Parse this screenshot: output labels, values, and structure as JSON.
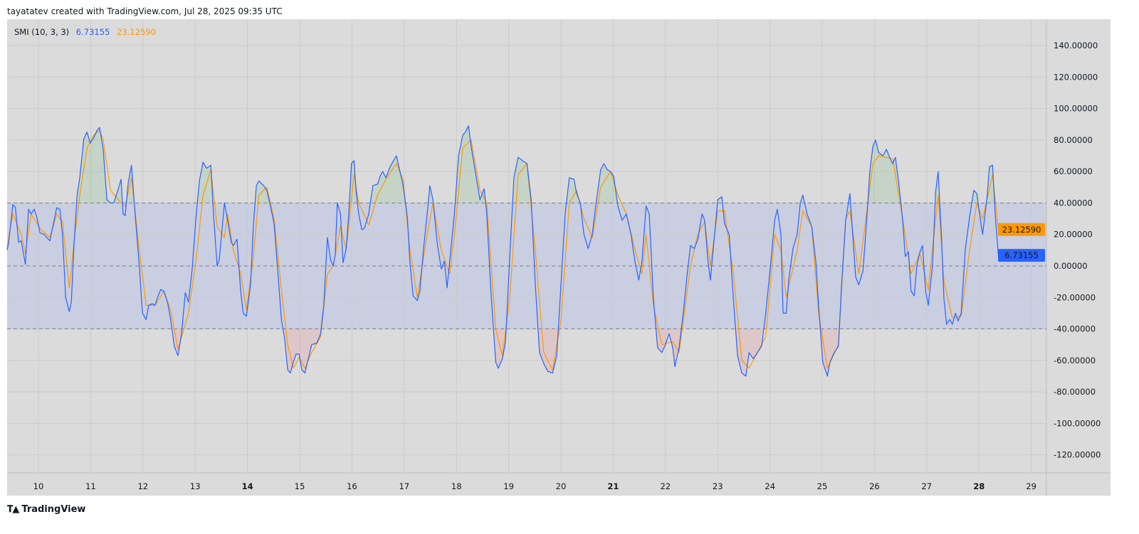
{
  "header": {
    "attribution": "tayatatev created with TradingView.com, Jul 28, 2025 09:35 UTC"
  },
  "legend": {
    "indicator": "SMI (10, 3, 3)",
    "smi_value": "6.73155",
    "signal_value": "23.12590"
  },
  "footer": {
    "brand": "TradingView",
    "logo_icon": "tradingview-logo-icon"
  },
  "colors": {
    "smi": "#2962ff",
    "signal": "#ff9800",
    "band": "#c9cee0",
    "background": "#dbdbdb",
    "overbought_fill": "#4caf50",
    "oversold_fill": "#f23645"
  },
  "chart_data": {
    "type": "line",
    "title": "SMI (10, 3, 3)",
    "ylim": [
      -130,
      150
    ],
    "xlim": [
      9.4,
      29.3
    ],
    "y_ticks": [
      140,
      120,
      100,
      80,
      60,
      40,
      20,
      0,
      -20,
      -40,
      -60,
      -80,
      -100,
      -120
    ],
    "y_tick_labels": [
      "140.00000",
      "120.00000",
      "100.00000",
      "80.00000",
      "60.00000",
      "40.00000",
      "20.00000",
      "0.00000",
      "-20.00000",
      "-40.00000",
      "-60.00000",
      "-80.00000",
      "-100.00000",
      "-120.00000"
    ],
    "x_ticks": [
      10,
      11,
      12,
      13,
      14,
      15,
      16,
      17,
      18,
      19,
      20,
      21,
      22,
      23,
      24,
      25,
      26,
      27,
      28,
      29
    ],
    "x_tick_labels": [
      "10",
      "11",
      "12",
      "13",
      "14",
      "15",
      "16",
      "17",
      "18",
      "19",
      "20",
      "21",
      "22",
      "23",
      "24",
      "25",
      "26",
      "27",
      "28",
      "29"
    ],
    "x_bold_ticks": [
      "14",
      "21",
      "28"
    ],
    "bands": {
      "upper": 40,
      "middle": 0,
      "lower": -40
    },
    "grid": true,
    "last_labels": {
      "signal": "23.12590",
      "smi": "6.73155"
    },
    "series": [
      {
        "name": "SMI",
        "color": "#2962ff",
        "x": [
          9.4,
          9.43,
          9.51,
          9.56,
          9.62,
          9.67,
          9.75,
          9.81,
          9.86,
          9.92,
          9.97,
          10.03,
          10.11,
          10.16,
          10.22,
          10.3,
          10.35,
          10.41,
          10.46,
          10.52,
          10.59,
          10.63,
          10.68,
          10.74,
          10.79,
          10.87,
          10.93,
          10.99,
          11.05,
          11.12,
          11.17,
          11.24,
          11.31,
          11.38,
          11.44,
          11.53,
          11.58,
          11.62,
          11.66,
          11.72,
          11.78,
          11.85,
          11.93,
          11.99,
          12.06,
          12.11,
          12.18,
          12.23,
          12.29,
          12.34,
          12.4,
          12.47,
          12.53,
          12.6,
          12.67,
          12.74,
          12.81,
          12.87,
          12.94,
          13.02,
          13.08,
          13.15,
          13.22,
          13.3,
          13.35,
          13.42,
          13.46,
          13.56,
          13.62,
          13.69,
          13.73,
          13.8,
          13.87,
          13.92,
          13.98,
          14.06,
          14.11,
          14.17,
          14.22,
          14.31,
          14.37,
          14.44,
          14.51,
          14.58,
          14.65,
          14.71,
          14.77,
          14.82,
          14.88,
          14.93,
          14.99,
          15.04,
          15.1,
          15.15,
          15.23,
          15.33,
          15.4,
          15.46,
          15.53,
          15.59,
          15.64,
          15.68,
          15.72,
          15.78,
          15.83,
          15.89,
          15.94,
          15.99,
          16.04,
          16.08,
          16.13,
          16.19,
          16.24,
          16.32,
          16.4,
          16.49,
          16.54,
          16.59,
          16.65,
          16.73,
          16.78,
          16.85,
          16.92,
          16.98,
          17.06,
          17.11,
          17.17,
          17.25,
          17.3,
          17.37,
          17.44,
          17.49,
          17.55,
          17.63,
          17.71,
          17.77,
          17.82,
          17.87,
          17.96,
          18.04,
          18.12,
          18.17,
          18.23,
          18.28,
          18.37,
          18.45,
          18.53,
          18.58,
          18.66,
          18.75,
          18.8,
          18.88,
          18.94,
          19.02,
          19.1,
          19.18,
          19.26,
          19.35,
          19.43,
          19.51,
          19.59,
          19.67,
          19.75,
          19.84,
          19.92,
          20.0,
          20.08,
          20.16,
          20.25,
          20.3,
          20.37,
          20.44,
          20.52,
          20.6,
          20.68,
          20.76,
          20.82,
          20.89,
          20.95,
          21.01,
          21.09,
          21.17,
          21.25,
          21.34,
          21.42,
          21.49,
          21.55,
          21.63,
          21.69,
          21.77,
          21.85,
          21.93,
          22.0,
          22.07,
          22.14,
          22.18,
          22.26,
          22.34,
          22.41,
          22.48,
          22.55,
          22.62,
          22.7,
          22.75,
          22.81,
          22.86,
          22.94,
          23.0,
          23.08,
          23.13,
          23.22,
          23.3,
          23.38,
          23.46,
          23.54,
          23.6,
          23.68,
          23.76,
          23.84,
          23.92,
          24.01,
          24.09,
          24.14,
          24.21,
          24.25,
          24.31,
          24.36,
          24.44,
          24.52,
          24.58,
          24.63,
          24.71,
          24.8,
          24.88,
          24.93,
          25.01,
          25.1,
          25.15,
          25.23,
          25.31,
          25.37,
          25.45,
          25.53,
          25.59,
          25.64,
          25.7,
          25.78,
          25.86,
          25.91,
          25.97,
          26.02,
          26.08,
          26.16,
          26.23,
          26.29,
          26.35,
          26.4,
          26.46,
          26.54,
          26.59,
          26.65,
          26.7,
          26.76,
          26.81,
          26.87,
          26.92,
          26.98,
          27.03,
          27.11,
          27.17,
          27.22,
          27.28,
          27.33,
          27.38,
          27.44,
          27.49,
          27.55,
          27.6,
          27.66,
          27.74,
          27.82,
          27.9,
          27.96,
          28.01,
          28.07,
          28.15,
          28.2,
          28.26,
          28.31,
          28.37
        ],
        "values": [
          10,
          15,
          39,
          37,
          15,
          16,
          1,
          36,
          33,
          36,
          31,
          21,
          20,
          18,
          16,
          29,
          37,
          36,
          20,
          -20,
          -29,
          -23,
          13,
          45,
          56,
          81,
          85,
          78,
          81,
          86,
          88,
          74,
          42,
          40,
          40,
          49,
          55,
          33,
          32,
          53,
          64,
          33,
          0,
          -30,
          -34,
          -25,
          -24,
          -25,
          -19,
          -15,
          -16,
          -23,
          -34,
          -51,
          -57,
          -43,
          -17,
          -23,
          -3,
          33,
          54,
          66,
          62,
          64,
          33,
          0,
          4,
          40,
          29,
          15,
          13,
          17,
          -16,
          -30,
          -32,
          -12,
          24,
          51,
          54,
          51,
          48,
          38,
          27,
          -3,
          -34,
          -46,
          -66,
          -68,
          -61,
          -56,
          -56,
          -66,
          -68,
          -61,
          -50,
          -49,
          -43,
          -25,
          18,
          4,
          0,
          7,
          40,
          33,
          2,
          11,
          33,
          65,
          67,
          47,
          33,
          23,
          24,
          33,
          51,
          52,
          57,
          60,
          56,
          63,
          66,
          70,
          60,
          51,
          31,
          2,
          -19,
          -22,
          -16,
          11,
          33,
          51,
          42,
          15,
          -2,
          3,
          -14,
          3,
          33,
          70,
          83,
          85,
          89,
          76,
          58,
          42,
          49,
          33,
          -16,
          -61,
          -65,
          -59,
          -48,
          6,
          56,
          69,
          67,
          65,
          42,
          -12,
          -55,
          -62,
          -67,
          -68,
          -57,
          -12,
          33,
          56,
          55,
          46,
          40,
          20,
          11,
          20,
          42,
          61,
          65,
          61,
          60,
          57,
          38,
          29,
          33,
          20,
          2,
          -9,
          3,
          38,
          33,
          -21,
          -52,
          -55,
          -50,
          -43,
          -52,
          -64,
          -52,
          -30,
          -7,
          13,
          11,
          17,
          33,
          29,
          4,
          -9,
          20,
          42,
          44,
          27,
          20,
          -21,
          -57,
          -68,
          -70,
          -55,
          -59,
          -55,
          -51,
          -30,
          0,
          29,
          36,
          20,
          -30,
          -30,
          -9,
          11,
          20,
          40,
          45,
          33,
          25,
          2,
          -25,
          -61,
          -70,
          -61,
          -55,
          -51,
          -12,
          29,
          46,
          17,
          -7,
          -12,
          -3,
          33,
          60,
          76,
          80,
          72,
          70,
          74,
          69,
          65,
          69,
          54,
          29,
          6,
          9,
          -16,
          -19,
          0,
          9,
          13,
          -16,
          -25,
          0,
          47,
          60,
          20,
          -21,
          -37,
          -34,
          -37,
          -30,
          -35,
          -30,
          11,
          31,
          48,
          46,
          33,
          20,
          42,
          63,
          64,
          33,
          6.73155
        ]
      },
      {
        "name": "Signal",
        "color": "#ff9800",
        "x": [
          9.4,
          9.51,
          9.67,
          9.75,
          9.86,
          10.03,
          10.22,
          10.35,
          10.46,
          10.59,
          10.68,
          10.79,
          10.93,
          11.05,
          11.17,
          11.24,
          11.38,
          11.53,
          11.66,
          11.78,
          11.93,
          12.06,
          12.23,
          12.4,
          12.53,
          12.67,
          12.87,
          13.02,
          13.15,
          13.3,
          13.42,
          13.56,
          13.62,
          13.73,
          13.87,
          13.98,
          14.11,
          14.22,
          14.37,
          14.51,
          14.65,
          14.77,
          14.88,
          14.99,
          15.1,
          15.23,
          15.4,
          15.53,
          15.64,
          15.78,
          15.89,
          16.04,
          16.13,
          16.32,
          16.49,
          16.65,
          16.85,
          16.98,
          17.11,
          17.25,
          17.44,
          17.55,
          17.71,
          17.87,
          17.96,
          18.12,
          18.28,
          18.45,
          18.58,
          18.75,
          18.88,
          19.02,
          19.18,
          19.35,
          19.51,
          19.67,
          19.84,
          20.0,
          20.16,
          20.3,
          20.44,
          20.6,
          20.76,
          20.95,
          21.09,
          21.25,
          21.42,
          21.55,
          21.63,
          21.77,
          21.93,
          22.14,
          22.26,
          22.48,
          22.62,
          22.75,
          22.86,
          23.0,
          23.13,
          23.3,
          23.46,
          23.6,
          23.76,
          23.92,
          24.09,
          24.21,
          24.31,
          24.52,
          24.63,
          24.8,
          24.93,
          25.1,
          25.31,
          25.45,
          25.53,
          25.7,
          25.97,
          26.08,
          26.35,
          26.54,
          26.7,
          26.87,
          27.03,
          27.22,
          27.33,
          27.49,
          27.66,
          27.82,
          27.96,
          28.07,
          28.26,
          28.37
        ],
        "values": [
          12,
          33,
          20,
          8,
          33,
          24,
          18,
          33,
          28,
          -14,
          15,
          45,
          75,
          83,
          86,
          80,
          48,
          42,
          38,
          56,
          10,
          -25,
          -25,
          -16,
          -28,
          -53,
          -30,
          5,
          45,
          61,
          25,
          18,
          33,
          10,
          -5,
          -28,
          5,
          45,
          50,
          30,
          -15,
          -50,
          -65,
          -58,
          -65,
          -55,
          -45,
          -5,
          0,
          25,
          10,
          58,
          40,
          26,
          45,
          55,
          65,
          55,
          10,
          -20,
          20,
          40,
          10,
          -5,
          20,
          75,
          80,
          48,
          40,
          -40,
          -57,
          -20,
          58,
          65,
          10,
          -55,
          -66,
          -35,
          40,
          48,
          30,
          18,
          50,
          60,
          45,
          33,
          10,
          -5,
          20,
          -25,
          -50,
          -48,
          -55,
          0,
          20,
          28,
          0,
          35,
          35,
          -5,
          -60,
          -65,
          -55,
          -45,
          20,
          10,
          -20,
          10,
          35,
          25,
          -30,
          -65,
          -50,
          30,
          35,
          -5,
          65,
          70,
          68,
          30,
          -5,
          8,
          -15,
          45,
          -10,
          -33,
          -32,
          10,
          40,
          30,
          58,
          23.1259
        ]
      }
    ]
  }
}
